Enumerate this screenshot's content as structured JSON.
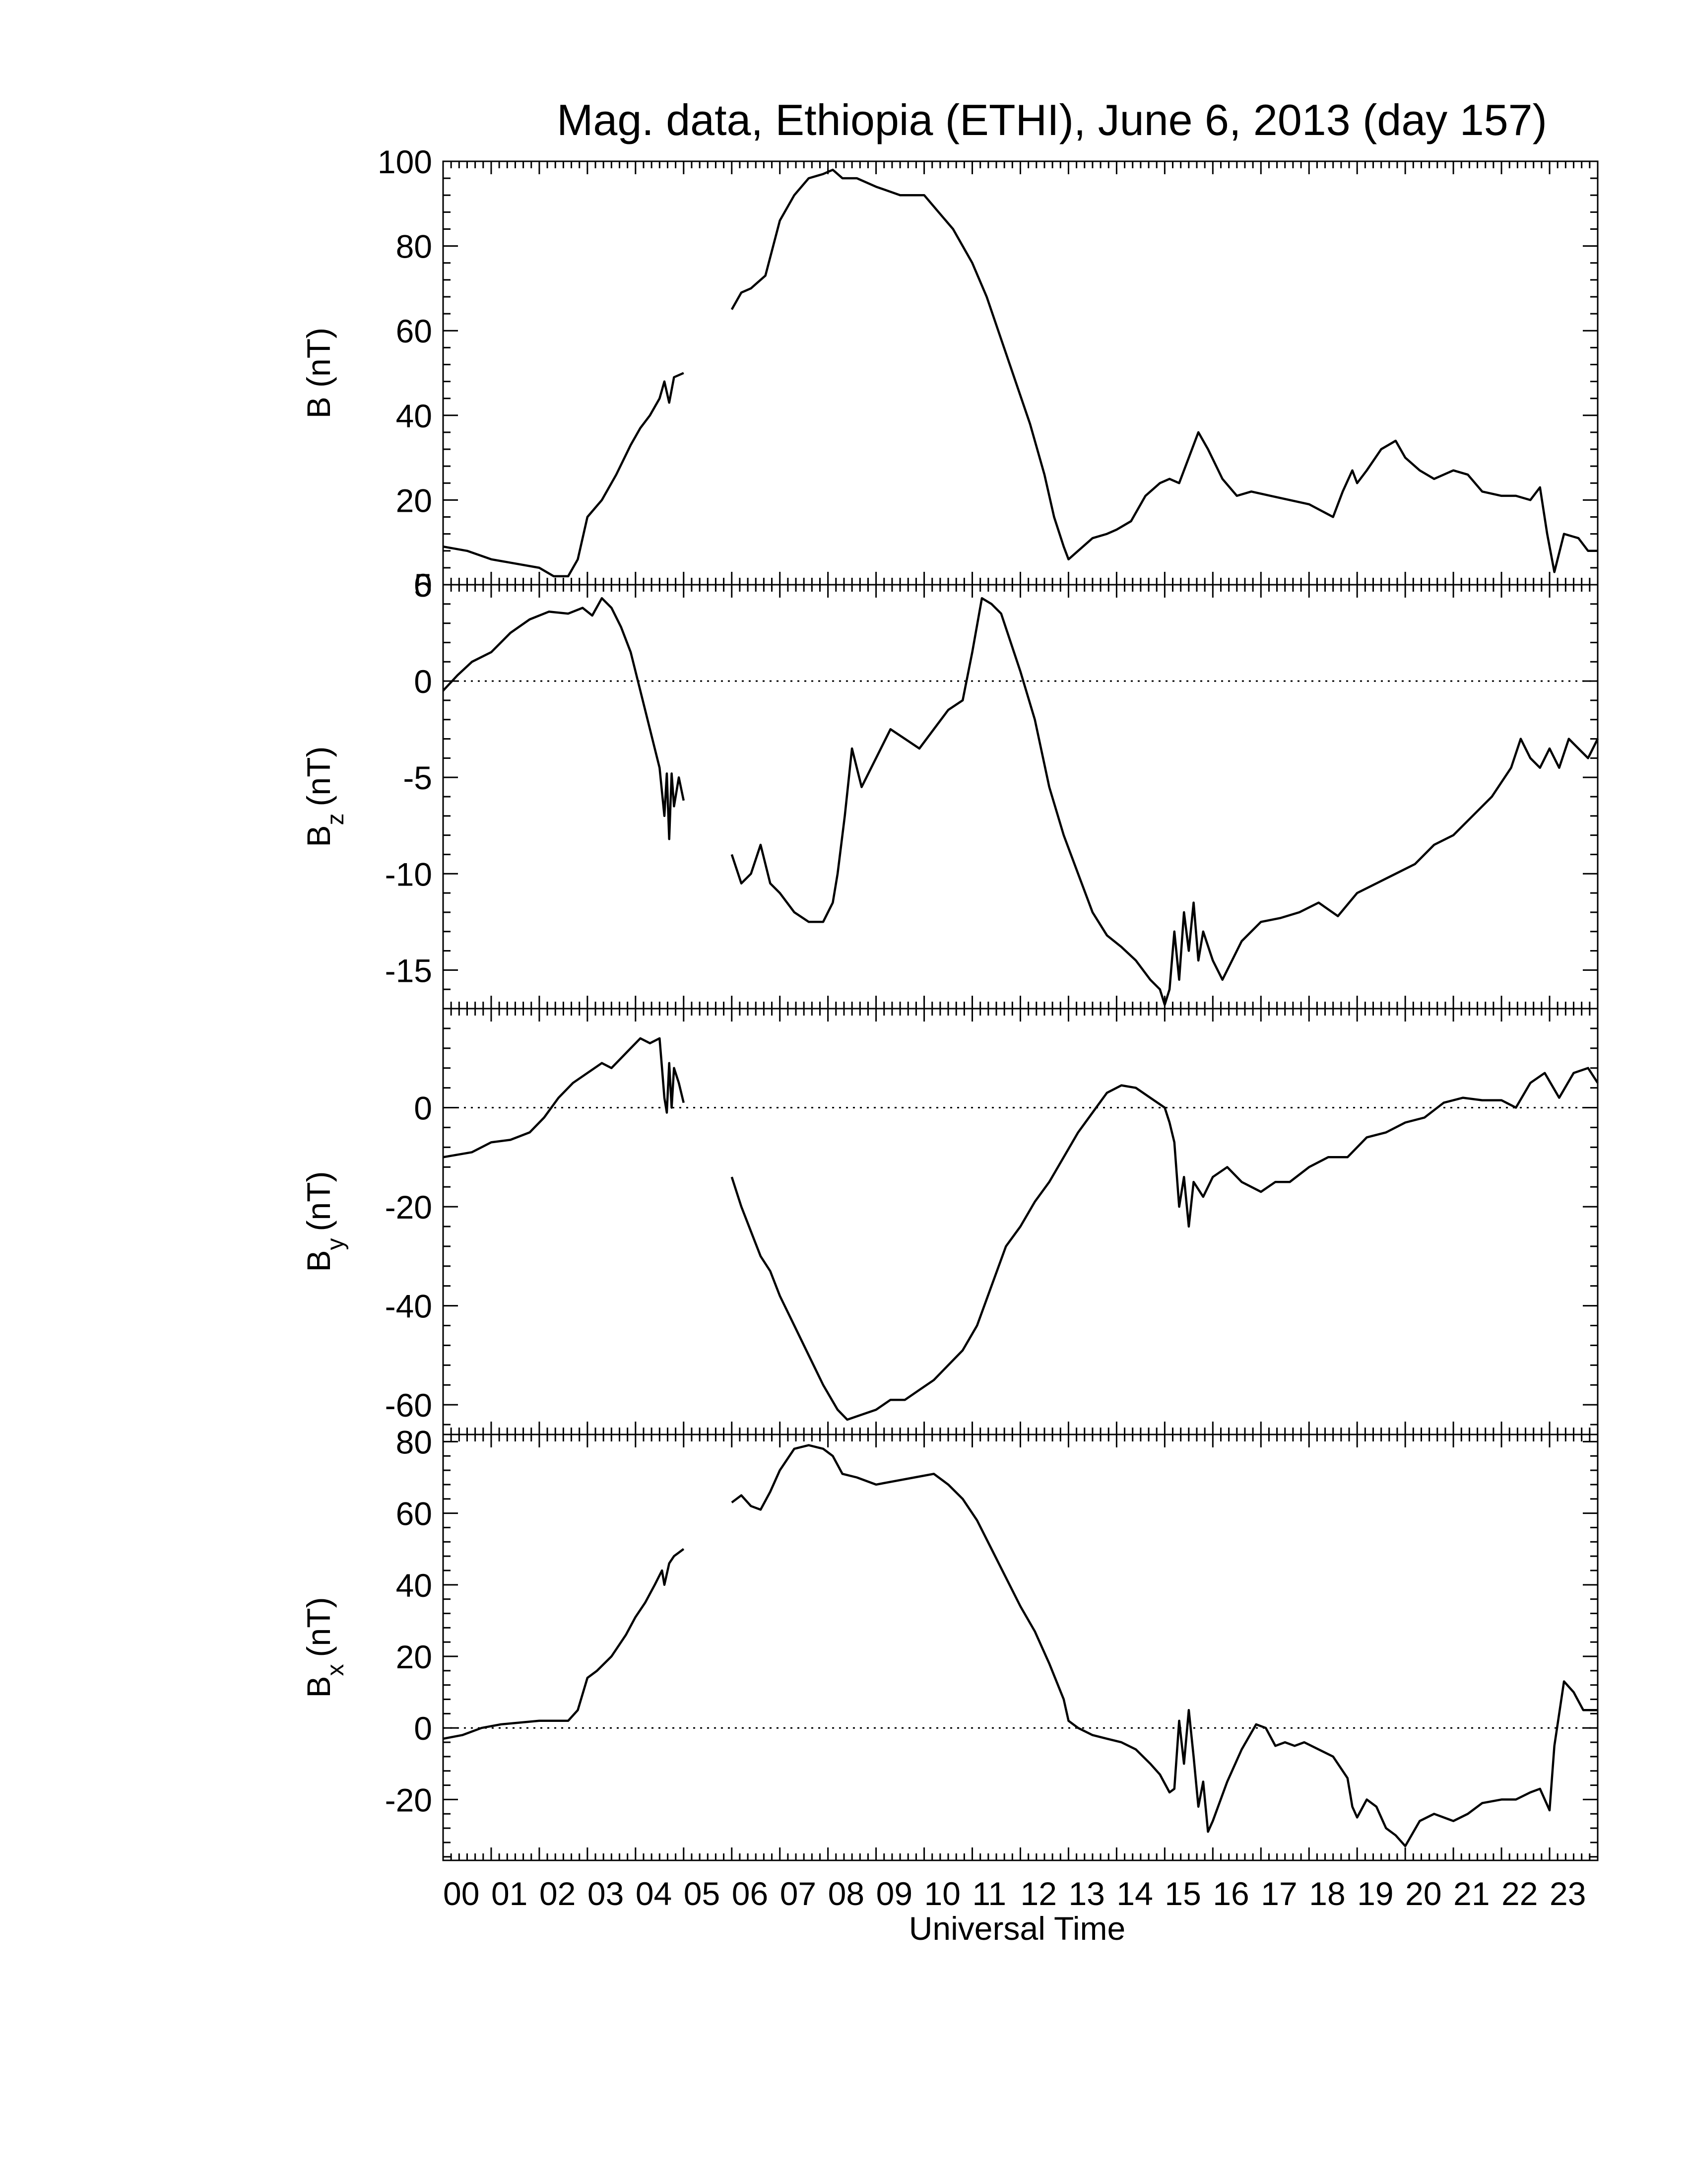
{
  "title": "Mag. data, Ethiopia (ETHI), June 6, 2013 (day 157)",
  "xlabel": "Universal Time",
  "x_tick_labels": [
    "00",
    "01",
    "02",
    "03",
    "04",
    "05",
    "06",
    "07",
    "08",
    "09",
    "10",
    "11",
    "12",
    "13",
    "14",
    "15",
    "16",
    "17",
    "18",
    "19",
    "20",
    "21",
    "22",
    "23"
  ],
  "chart_data": [
    {
      "type": "line",
      "panel": "B",
      "ylabel": "B (nT)",
      "ylim": [
        0,
        100
      ],
      "yticks": [
        0,
        20,
        40,
        60,
        80,
        100
      ],
      "zero_line": false,
      "xlim": [
        0,
        24
      ],
      "segments": [
        {
          "x": [
            0,
            0.5,
            1,
            1.5,
            2,
            2.3,
            2.6,
            2.8,
            3.0,
            3.3,
            3.6,
            3.9,
            4.1,
            4.3,
            4.5,
            4.6,
            4.7,
            4.8,
            5.0
          ],
          "y": [
            9,
            8,
            6,
            5,
            4,
            2,
            2,
            6,
            16,
            20,
            26,
            33,
            37,
            40,
            44,
            48,
            43,
            49,
            50
          ]
        },
        {
          "x": [
            6.0,
            6.2,
            6.4,
            6.7,
            7.0,
            7.3,
            7.6,
            7.9,
            8.1,
            8.3,
            8.6,
            9.0,
            9.5,
            10.0,
            10.3,
            10.6,
            11.0,
            11.3,
            11.6,
            11.9,
            12.2,
            12.5,
            12.7,
            12.9,
            13.0,
            13.2,
            13.5,
            13.8,
            14.0,
            14.3,
            14.6,
            14.9,
            15.1,
            15.3,
            15.5,
            15.7,
            15.9,
            16.2,
            16.5,
            16.8,
            17.2,
            17.6,
            18.0,
            18.5,
            18.7,
            18.9,
            19.0,
            19.2,
            19.5,
            19.8,
            20.0,
            20.3,
            20.6,
            21.0,
            21.3,
            21.6,
            22.0,
            22.3,
            22.6,
            22.8,
            22.95,
            23.1,
            23.3,
            23.6,
            23.8,
            24.0
          ],
          "y": [
            65,
            69,
            70,
            73,
            86,
            92,
            96,
            97,
            98,
            96,
            96,
            94,
            92,
            92,
            88,
            84,
            76,
            68,
            58,
            48,
            38,
            26,
            16,
            9,
            6,
            8,
            11,
            12,
            13,
            15,
            21,
            24,
            25,
            24,
            30,
            36,
            32,
            25,
            21,
            22,
            21,
            20,
            19,
            16,
            22,
            27,
            24,
            27,
            32,
            34,
            30,
            27,
            25,
            27,
            26,
            22,
            21,
            21,
            20,
            23,
            12,
            3,
            12,
            11,
            8,
            8
          ]
        }
      ]
    },
    {
      "type": "line",
      "panel": "Bz",
      "ylabel": "B",
      "ylabel_sub": "z",
      "ylabel_unit": "(nT)",
      "ylim": [
        -17,
        5
      ],
      "yticks": [
        -15,
        -10,
        -5,
        0,
        5
      ],
      "zero_line": true,
      "xlim": [
        0,
        24
      ],
      "segments": [
        {
          "x": [
            0,
            0.3,
            0.6,
            1.0,
            1.4,
            1.8,
            2.2,
            2.6,
            2.9,
            3.1,
            3.3,
            3.5,
            3.7,
            3.9,
            4.1,
            4.2,
            4.3,
            4.4,
            4.5,
            4.6,
            4.65,
            4.7,
            4.75,
            4.8,
            4.9,
            5.0
          ],
          "y": [
            -0.5,
            0.3,
            1,
            1.5,
            2.5,
            3.2,
            3.6,
            3.5,
            3.8,
            3.4,
            4.3,
            3.8,
            2.8,
            1.5,
            -0.5,
            -1.5,
            -2.5,
            -3.5,
            -4.5,
            -7,
            -4.8,
            -8.2,
            -4.8,
            -6.5,
            -5,
            -6.2
          ]
        },
        {
          "x": [
            6.0,
            6.2,
            6.4,
            6.6,
            6.8,
            7.0,
            7.3,
            7.6,
            7.9,
            8.1,
            8.2,
            8.35,
            8.5,
            8.7,
            9.0,
            9.3,
            9.6,
            9.9,
            10.2,
            10.5,
            10.8,
            11.0,
            11.2,
            11.4,
            11.6,
            11.8,
            12.0,
            12.3,
            12.6,
            12.9,
            13.2,
            13.5,
            13.8,
            14.1,
            14.4,
            14.7,
            14.9,
            15.0,
            15.1,
            15.2,
            15.3,
            15.4,
            15.5,
            15.6,
            15.7,
            15.8,
            16.0,
            16.2,
            16.4,
            16.6,
            17.0,
            17.4,
            17.8,
            18.2,
            18.6,
            19.0,
            19.4,
            19.8,
            20.2,
            20.6,
            21.0,
            21.4,
            21.8,
            22.2,
            22.4,
            22.6,
            22.8,
            23.0,
            23.2,
            23.4,
            23.6,
            23.8,
            24.0
          ],
          "y": [
            -9,
            -10.5,
            -10,
            -8.5,
            -10.5,
            -11,
            -12,
            -12.5,
            -12.5,
            -11.5,
            -10,
            -7,
            -3.5,
            -5.5,
            -4,
            -2.5,
            -3,
            -3.5,
            -2.5,
            -1.5,
            -1,
            1.5,
            4.3,
            4,
            3.5,
            2,
            0.5,
            -2,
            -5.5,
            -8,
            -10,
            -12,
            -13.2,
            -13.8,
            -14.5,
            -15.5,
            -16,
            -16.8,
            -16,
            -13,
            -15.5,
            -12,
            -14,
            -11.5,
            -14.5,
            -13,
            -14.5,
            -15.5,
            -14.5,
            -13.5,
            -12.5,
            -12.3,
            -12,
            -11.5,
            -12.2,
            -11,
            -10.5,
            -10,
            -9.5,
            -8.5,
            -8,
            -7,
            -6,
            -4.5,
            -3,
            -4,
            -4.5,
            -3.5,
            -4.5,
            -3,
            -3.5,
            -4,
            -3
          ]
        }
      ]
    },
    {
      "type": "line",
      "panel": "By",
      "ylabel": "B",
      "ylabel_sub": "y",
      "ylabel_unit": "(nT)",
      "ylim": [
        -66,
        20
      ],
      "yticks": [
        -60,
        -40,
        -20,
        0
      ],
      "zero_line": true,
      "xlim": [
        0,
        24
      ],
      "segments": [
        {
          "x": [
            0,
            0.3,
            0.6,
            1.0,
            1.4,
            1.8,
            2.1,
            2.4,
            2.7,
            3.0,
            3.3,
            3.5,
            3.7,
            3.9,
            4.1,
            4.3,
            4.5,
            4.55,
            4.6,
            4.65,
            4.7,
            4.75,
            4.8,
            4.9,
            5.0
          ],
          "y": [
            -10,
            -9.5,
            -9,
            -7,
            -6.5,
            -5,
            -2,
            2,
            5,
            7,
            9,
            8,
            10,
            12,
            14,
            13,
            14,
            8,
            2,
            -1,
            9,
            0,
            8,
            5,
            1
          ]
        },
        {
          "x": [
            6.0,
            6.2,
            6.4,
            6.6,
            6.8,
            7.0,
            7.3,
            7.6,
            7.9,
            8.2,
            8.4,
            8.7,
            9.0,
            9.3,
            9.6,
            9.9,
            10.2,
            10.5,
            10.8,
            11.1,
            11.4,
            11.7,
            12.0,
            12.3,
            12.6,
            12.9,
            13.2,
            13.5,
            13.8,
            14.1,
            14.4,
            14.7,
            15.0,
            15.1,
            15.2,
            15.3,
            15.4,
            15.5,
            15.6,
            15.8,
            16.0,
            16.3,
            16.6,
            17.0,
            17.3,
            17.6,
            18.0,
            18.4,
            18.8,
            19.2,
            19.6,
            20.0,
            20.4,
            20.8,
            21.2,
            21.6,
            22.0,
            22.3,
            22.6,
            22.9,
            23.2,
            23.5,
            23.8,
            24.0
          ],
          "y": [
            -14,
            -20,
            -25,
            -30,
            -33,
            -38,
            -44,
            -50,
            -56,
            -61,
            -63,
            -62,
            -61,
            -59,
            -59,
            -57,
            -55,
            -52,
            -49,
            -44,
            -36,
            -28,
            -24,
            -19,
            -15,
            -10,
            -5,
            -1,
            3,
            4.5,
            4,
            2,
            0,
            -3,
            -7,
            -20,
            -14,
            -24,
            -15,
            -18,
            -14,
            -12,
            -15,
            -17,
            -15,
            -15,
            -12,
            -10,
            -10,
            -6,
            -5,
            -3,
            -2,
            1,
            2,
            1.5,
            1.5,
            0,
            5,
            7,
            2,
            7,
            8,
            5
          ]
        }
      ]
    },
    {
      "type": "line",
      "panel": "Bx",
      "ylabel": "B",
      "ylabel_sub": "x",
      "ylabel_unit": "(nT)",
      "ylim": [
        -37,
        82
      ],
      "yticks": [
        -20,
        0,
        20,
        40,
        60,
        80
      ],
      "zero_line": true,
      "xlim": [
        0,
        24
      ],
      "segments": [
        {
          "x": [
            0,
            0.4,
            0.8,
            1.2,
            1.6,
            2.0,
            2.3,
            2.6,
            2.8,
            3.0,
            3.2,
            3.5,
            3.8,
            4.0,
            4.2,
            4.4,
            4.55,
            4.6,
            4.7,
            4.8,
            4.9,
            5.0
          ],
          "y": [
            -3,
            -2,
            0,
            1,
            1.5,
            2,
            2,
            2,
            5,
            14,
            16,
            20,
            26,
            31,
            35,
            40,
            44,
            40,
            46,
            48,
            49,
            50
          ]
        },
        {
          "x": [
            6.0,
            6.2,
            6.4,
            6.6,
            6.8,
            7.0,
            7.3,
            7.6,
            7.9,
            8.1,
            8.3,
            8.6,
            9.0,
            9.4,
            9.8,
            10.2,
            10.5,
            10.8,
            11.1,
            11.4,
            11.7,
            12.0,
            12.3,
            12.6,
            12.9,
            13.0,
            13.2,
            13.5,
            13.8,
            14.1,
            14.4,
            14.7,
            14.9,
            15.1,
            15.2,
            15.3,
            15.4,
            15.5,
            15.6,
            15.7,
            15.8,
            15.9,
            16.0,
            16.3,
            16.6,
            16.9,
            17.1,
            17.3,
            17.5,
            17.7,
            17.9,
            18.2,
            18.5,
            18.8,
            18.9,
            19.0,
            19.2,
            19.4,
            19.6,
            19.8,
            20.0,
            20.3,
            20.6,
            21.0,
            21.3,
            21.6,
            22.0,
            22.3,
            22.6,
            22.8,
            23.0,
            23.1,
            23.3,
            23.5,
            23.7,
            24.0
          ],
          "y": [
            63,
            65,
            62,
            61,
            66,
            72,
            78,
            79,
            78,
            76,
            71,
            70,
            68,
            69,
            70,
            71,
            68,
            64,
            58,
            50,
            42,
            34,
            27,
            18,
            8,
            2,
            0,
            -2,
            -3,
            -4,
            -6,
            -10,
            -13,
            -18,
            -17,
            2,
            -10,
            5,
            -8,
            -22,
            -15,
            -29,
            -26,
            -15,
            -6,
            1,
            0,
            -5,
            -4,
            -5,
            -4,
            -6,
            -8,
            -14,
            -22,
            -25,
            -20,
            -22,
            -28,
            -30,
            -33,
            -26,
            -24,
            -26,
            -24,
            -21,
            -20,
            -20,
            -18,
            -17,
            -23,
            -5,
            13,
            10,
            5,
            5
          ]
        }
      ]
    }
  ]
}
